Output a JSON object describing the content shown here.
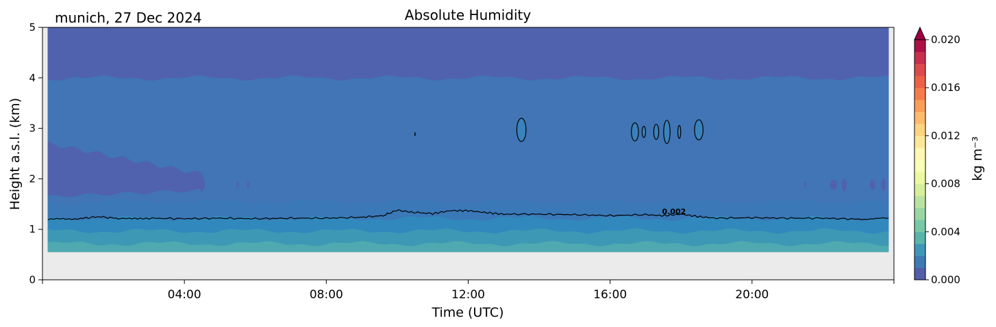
{
  "chart_data": {
    "type": "heatmap",
    "title": "Absolute Humidity",
    "location_label": "munich, 27 Dec 2024",
    "xlabel": "Time (UTC)",
    "ylabel": "Height a.s.l. (km)",
    "xlim": [
      0,
      24
    ],
    "ylim": [
      0,
      5
    ],
    "x_ticks": [
      {
        "value": 4,
        "label": "04:00"
      },
      {
        "value": 8,
        "label": "08:00"
      },
      {
        "value": 12,
        "label": "12:00"
      },
      {
        "value": 16,
        "label": "16:00"
      },
      {
        "value": 20,
        "label": "20:00"
      }
    ],
    "y_ticks": [
      {
        "value": 0,
        "label": "0"
      },
      {
        "value": 1,
        "label": "1"
      },
      {
        "value": 2,
        "label": "2"
      },
      {
        "value": 3,
        "label": "3"
      },
      {
        "value": 4,
        "label": "4"
      },
      {
        "value": 5,
        "label": "5"
      }
    ],
    "data_time_range": [
      0.15,
      23.85
    ],
    "data_height_range": [
      0.55,
      5.0
    ],
    "layers": [
      {
        "height_range": [
          0.55,
          0.72
        ],
        "value": 0.0048,
        "color": "#4fa9b0"
      },
      {
        "height_range": [
          0.72,
          0.97
        ],
        "value": 0.0038,
        "color": "#3d98b5"
      },
      {
        "height_range": [
          0.97,
          1.22
        ],
        "value": 0.0028,
        "color": "#3188bd"
      },
      {
        "height_range": [
          1.22,
          1.55
        ],
        "value": 0.0018,
        "color": "#3a78b8"
      },
      {
        "height_range": [
          1.55,
          4.0
        ],
        "value": 0.0012,
        "color": "#4175b5"
      },
      {
        "height_range": [
          4.0,
          5.0
        ],
        "value": 0.0004,
        "color": "#5062ad"
      }
    ],
    "contour": {
      "level": 0.002,
      "label": "0.002",
      "mean_height_km": 1.2,
      "label_position": {
        "time": 17.8,
        "height": 1.3
      },
      "points": [
        [
          0.15,
          1.2
        ],
        [
          1.0,
          1.21
        ],
        [
          1.6,
          1.25
        ],
        [
          2.2,
          1.21
        ],
        [
          3.0,
          1.22
        ],
        [
          4.0,
          1.21
        ],
        [
          5.0,
          1.22
        ],
        [
          6.0,
          1.21
        ],
        [
          7.0,
          1.22
        ],
        [
          8.0,
          1.22
        ],
        [
          9.0,
          1.24
        ],
        [
          9.6,
          1.27
        ],
        [
          10.0,
          1.38
        ],
        [
          10.4,
          1.34
        ],
        [
          11.0,
          1.31
        ],
        [
          11.5,
          1.37
        ],
        [
          12.0,
          1.37
        ],
        [
          12.5,
          1.33
        ],
        [
          13.0,
          1.3
        ],
        [
          14.0,
          1.3
        ],
        [
          15.0,
          1.29
        ],
        [
          16.0,
          1.27
        ],
        [
          17.0,
          1.29
        ],
        [
          17.5,
          1.27
        ],
        [
          18.0,
          1.3
        ],
        [
          18.5,
          1.25
        ],
        [
          19.0,
          1.22
        ],
        [
          20.0,
          1.23
        ],
        [
          21.0,
          1.22
        ],
        [
          22.0,
          1.22
        ],
        [
          23.0,
          1.2
        ],
        [
          23.85,
          1.22
        ]
      ]
    },
    "moist_patches": [
      {
        "time": 13.5,
        "height": 2.97,
        "half_width_h": 0.13,
        "half_height_km": 0.23
      },
      {
        "time": 16.7,
        "height": 2.93,
        "half_width_h": 0.1,
        "half_height_km": 0.18
      },
      {
        "time": 16.95,
        "height": 2.93,
        "half_width_h": 0.05,
        "half_height_km": 0.11
      },
      {
        "time": 17.3,
        "height": 2.93,
        "half_width_h": 0.07,
        "half_height_km": 0.15
      },
      {
        "time": 17.6,
        "height": 2.93,
        "half_width_h": 0.09,
        "half_height_km": 0.23
      },
      {
        "time": 17.95,
        "height": 2.93,
        "half_width_h": 0.04,
        "half_height_km": 0.13
      },
      {
        "time": 18.5,
        "height": 2.97,
        "half_width_h": 0.12,
        "half_height_km": 0.2
      }
    ],
    "dry_patches": [
      {
        "time": 4.5,
        "height": 1.9,
        "half_width_h": 0.08,
        "half_height_km": 0.15
      },
      {
        "time": 5.5,
        "height": 1.88,
        "half_width_h": 0.03,
        "half_height_km": 0.07
      },
      {
        "time": 5.8,
        "height": 1.88,
        "half_width_h": 0.03,
        "half_height_km": 0.07
      },
      {
        "time": 21.5,
        "height": 1.88,
        "half_width_h": 0.03,
        "half_height_km": 0.07
      },
      {
        "time": 22.3,
        "height": 1.88,
        "half_width_h": 0.1,
        "half_height_km": 0.1
      },
      {
        "time": 22.6,
        "height": 1.88,
        "half_width_h": 0.07,
        "half_height_km": 0.13
      },
      {
        "time": 23.4,
        "height": 1.88,
        "half_width_h": 0.08,
        "half_height_km": 0.1
      },
      {
        "time": 23.7,
        "height": 1.88,
        "half_width_h": 0.06,
        "half_height_km": 0.13
      }
    ],
    "dry_layer": {
      "time_range": [
        0.15,
        4.5
      ],
      "height_range": [
        1.55,
        2.7
      ]
    },
    "colorbar": {
      "label": "kg m⁻³",
      "range": [
        0.0,
        0.02
      ],
      "extend": "max",
      "ticks": [
        {
          "value": 0.0,
          "label": "0.000"
        },
        {
          "value": 0.004,
          "label": "0.004"
        },
        {
          "value": 0.008,
          "label": "0.008"
        },
        {
          "value": 0.012,
          "label": "0.012"
        },
        {
          "value": 0.016,
          "label": "0.016"
        },
        {
          "value": 0.02,
          "label": "0.020"
        }
      ],
      "colors": [
        "#5e4fa2",
        "#3288bd",
        "#66c2a5",
        "#abdda4",
        "#e6f598",
        "#ffffbf",
        "#fee08b",
        "#fdae61",
        "#f46d43",
        "#d53e4f",
        "#9e0142"
      ],
      "extend_color": "#9e0142"
    },
    "background_color": "#ebebeb",
    "grid": false,
    "legend": "none"
  }
}
